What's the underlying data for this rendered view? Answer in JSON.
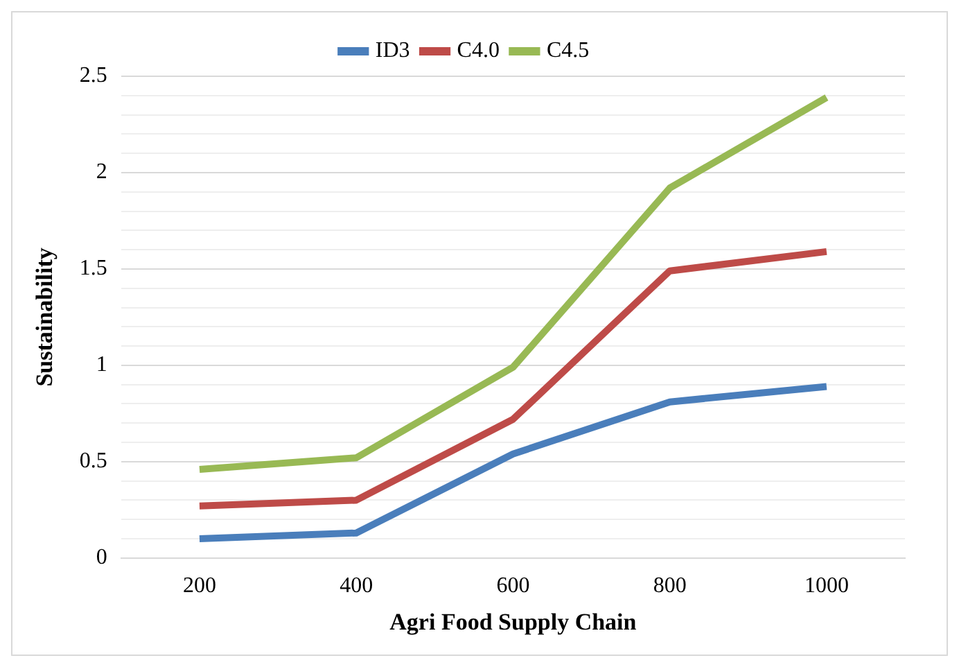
{
  "chart_data": {
    "type": "line",
    "xlabel": "Agri Food Supply Chain",
    "ylabel": "Sustainability",
    "categories": [
      "200",
      "400",
      "600",
      "800",
      "1000"
    ],
    "series": [
      {
        "name": "ID3",
        "color": "#4a7ebb",
        "values": [
          0.1,
          0.13,
          0.54,
          0.81,
          0.89
        ]
      },
      {
        "name": "C4.0",
        "color": "#be4b48",
        "values": [
          0.27,
          0.3,
          0.72,
          1.49,
          1.59
        ]
      },
      {
        "name": "C4.5",
        "color": "#98b954",
        "values": [
          0.46,
          0.52,
          0.99,
          1.92,
          2.39
        ]
      }
    ],
    "ylim": [
      0,
      2.5
    ],
    "yticks": [
      0,
      {
        "value": 0.1,
        "label": null
      },
      {
        "value": 0.2,
        "label": null
      },
      {
        "value": 0.3,
        "label": null
      },
      {
        "value": 0.4,
        "label": null
      },
      0.5,
      {
        "value": 0.6,
        "label": null
      },
      {
        "value": 0.7,
        "label": null
      },
      {
        "value": 0.8,
        "label": null
      },
      {
        "value": 0.9,
        "label": null
      },
      1,
      {
        "value": 1.1,
        "label": null
      },
      {
        "value": 1.2,
        "label": null
      },
      {
        "value": 1.3,
        "label": null
      },
      {
        "value": 1.4,
        "label": null
      },
      1.5,
      {
        "value": 1.6,
        "label": null
      },
      {
        "value": 1.7,
        "label": null
      },
      {
        "value": 1.8,
        "label": null
      },
      {
        "value": 1.9,
        "label": null
      },
      2,
      {
        "value": 2.1,
        "label": null
      },
      {
        "value": 2.2,
        "label": null
      },
      {
        "value": 2.3,
        "label": null
      },
      {
        "value": 2.4,
        "label": null
      },
      2.5
    ],
    "grid": "y",
    "legend": "top",
    "marker": "none",
    "line_style": "solid"
  }
}
